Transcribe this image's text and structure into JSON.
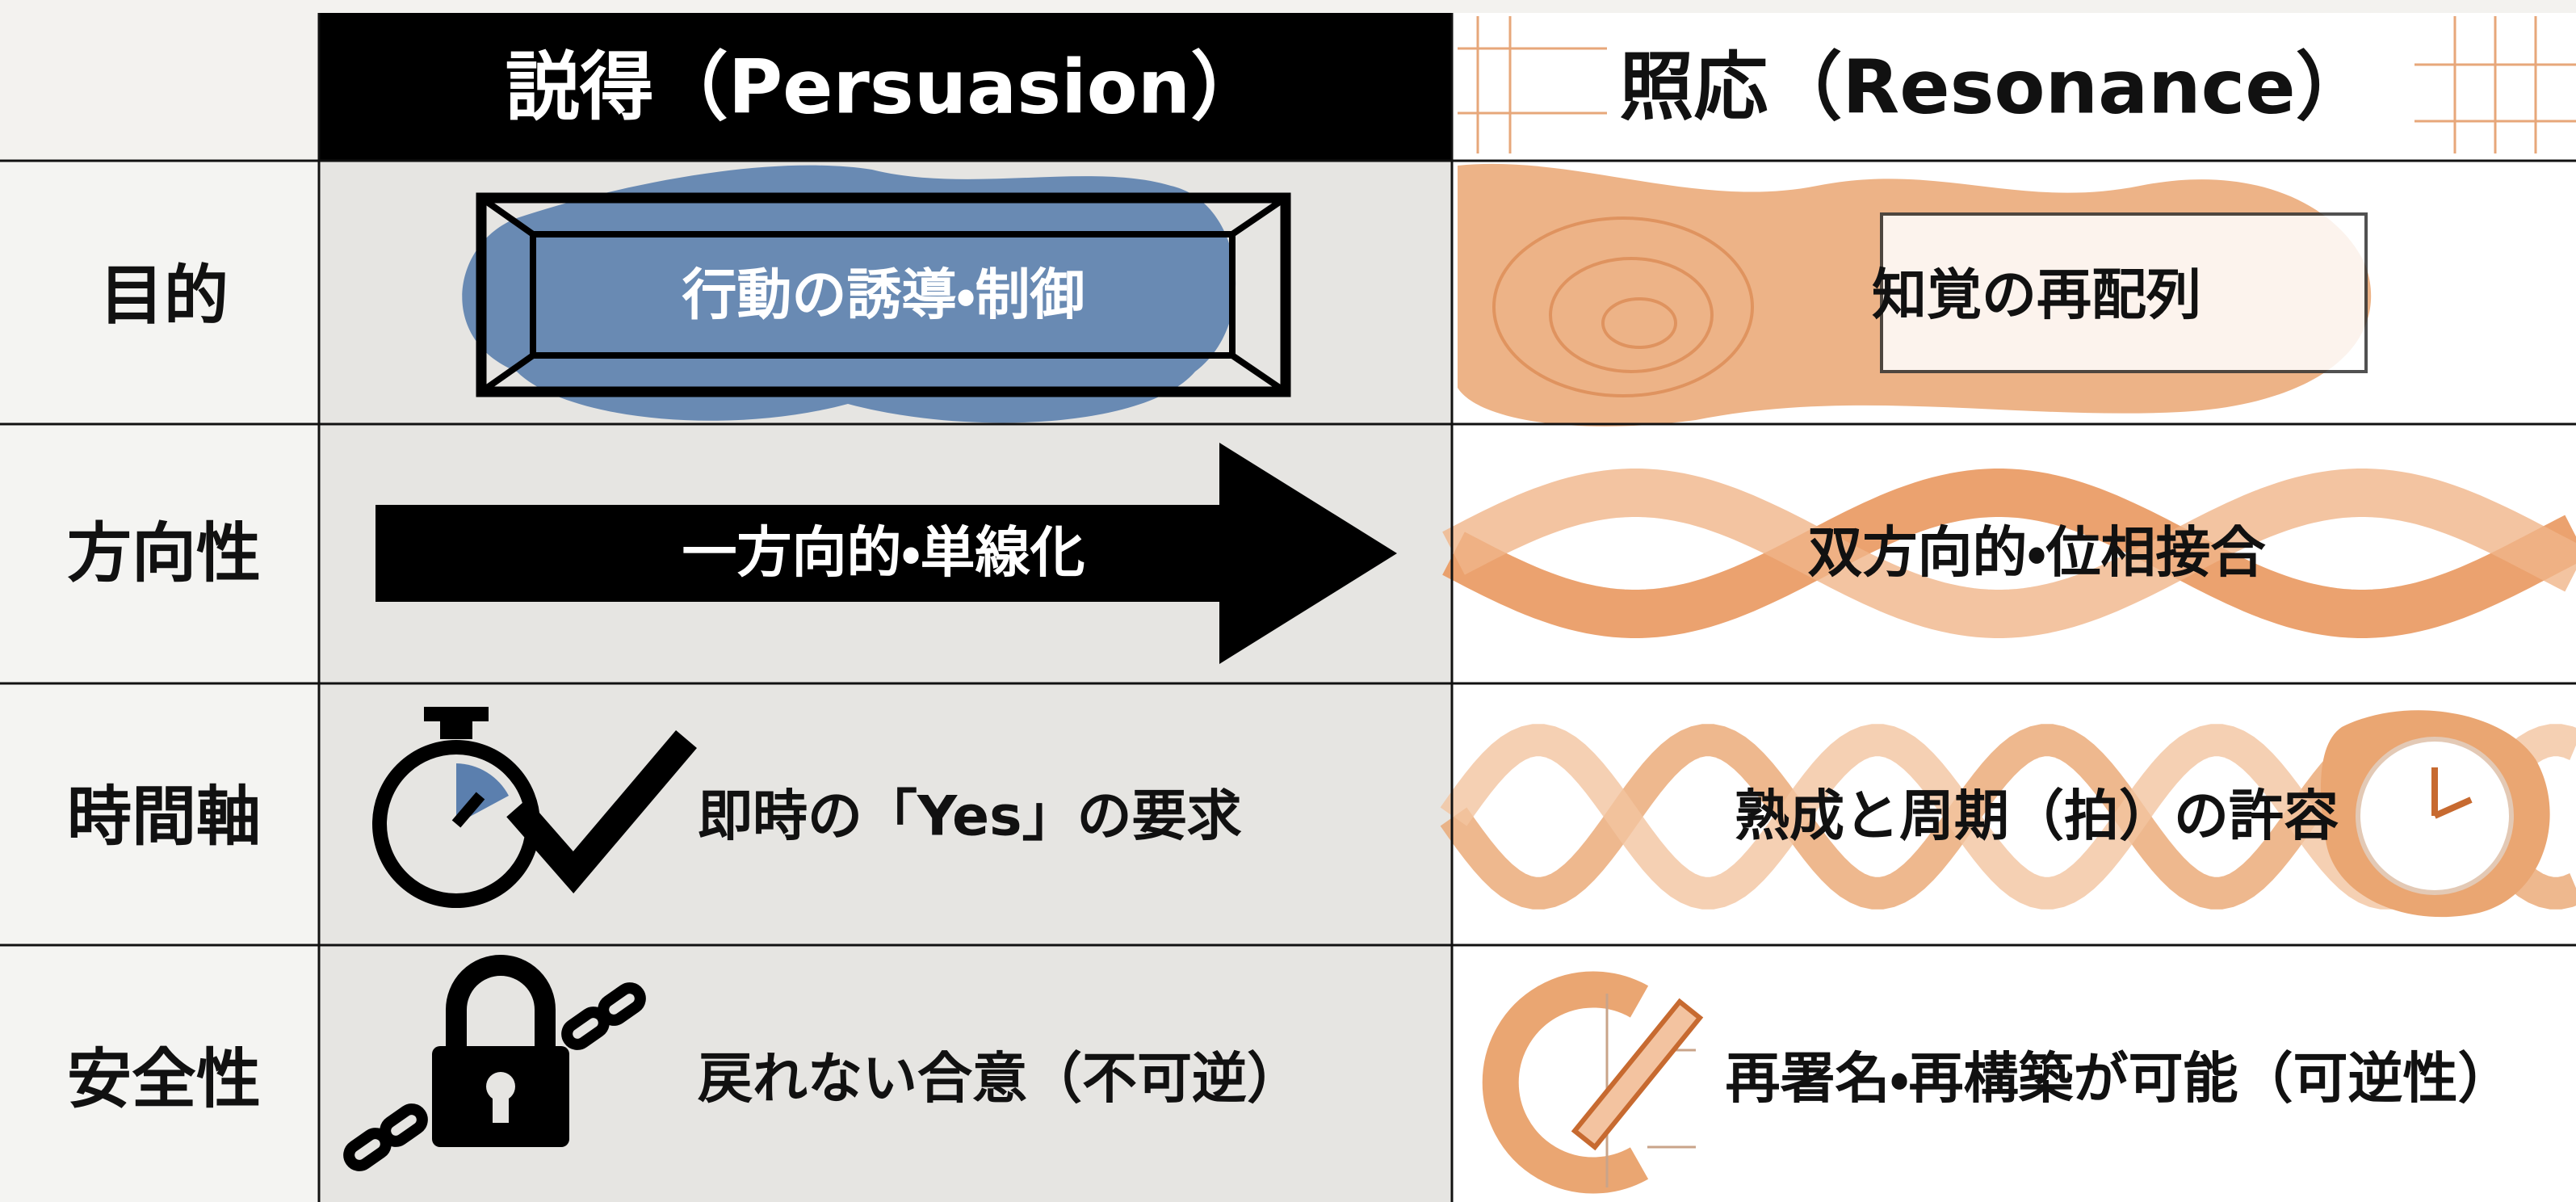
{
  "header": {
    "columns": [
      "説得（Persuasion）",
      "照応（Resonance）"
    ]
  },
  "rows": [
    {
      "label": "目的",
      "persuasion": "行動の誘導・制御",
      "resonance": "知覚の再配列"
    },
    {
      "label": "方向性",
      "persuasion": "一方向的・単線化",
      "resonance": "双方向的・位相接合"
    },
    {
      "label": "時間軸",
      "persuasion": "即時の「Yes」の要求",
      "resonance": "熟成と周期（拍）の許容"
    },
    {
      "label": "安全性",
      "persuasion": "戻れない合意（不可逆）",
      "resonance": "再署名・再構築が可能（可逆性）"
    }
  ]
}
